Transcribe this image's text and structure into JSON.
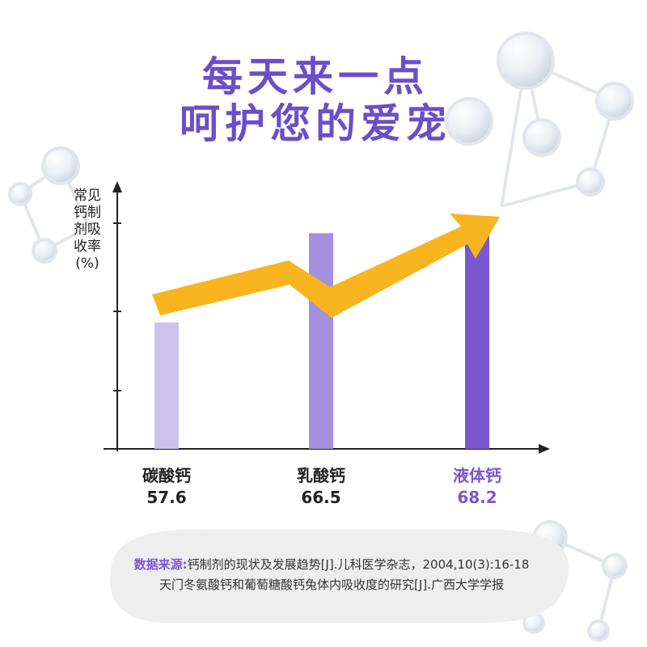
{
  "chart_data": {
    "type": "bar",
    "title": [
      "每天来一点",
      "呵护您的爱宠"
    ],
    "y_label": "常见钙制剂吸收率(%)",
    "categories": [
      "碳酸钙",
      "乳酸钙",
      "液体钙"
    ],
    "values": [
      57.6,
      66.5,
      68.2
    ],
    "colors": [
      "#cbc2ee",
      "#a390de",
      "#7a58d0"
    ],
    "highlight_color": "#7a58d0",
    "ylim": [
      45,
      70
    ],
    "grid": false
  },
  "source": {
    "label": "数据来源:",
    "lines": [
      "钙制剂的现状及发展趋势[J].儿科医学杂志，2004,10(3):16-18",
      "天门冬氨酸钙和葡萄糖酸钙兔体内吸收度的研究[J].广西大学学报"
    ]
  }
}
